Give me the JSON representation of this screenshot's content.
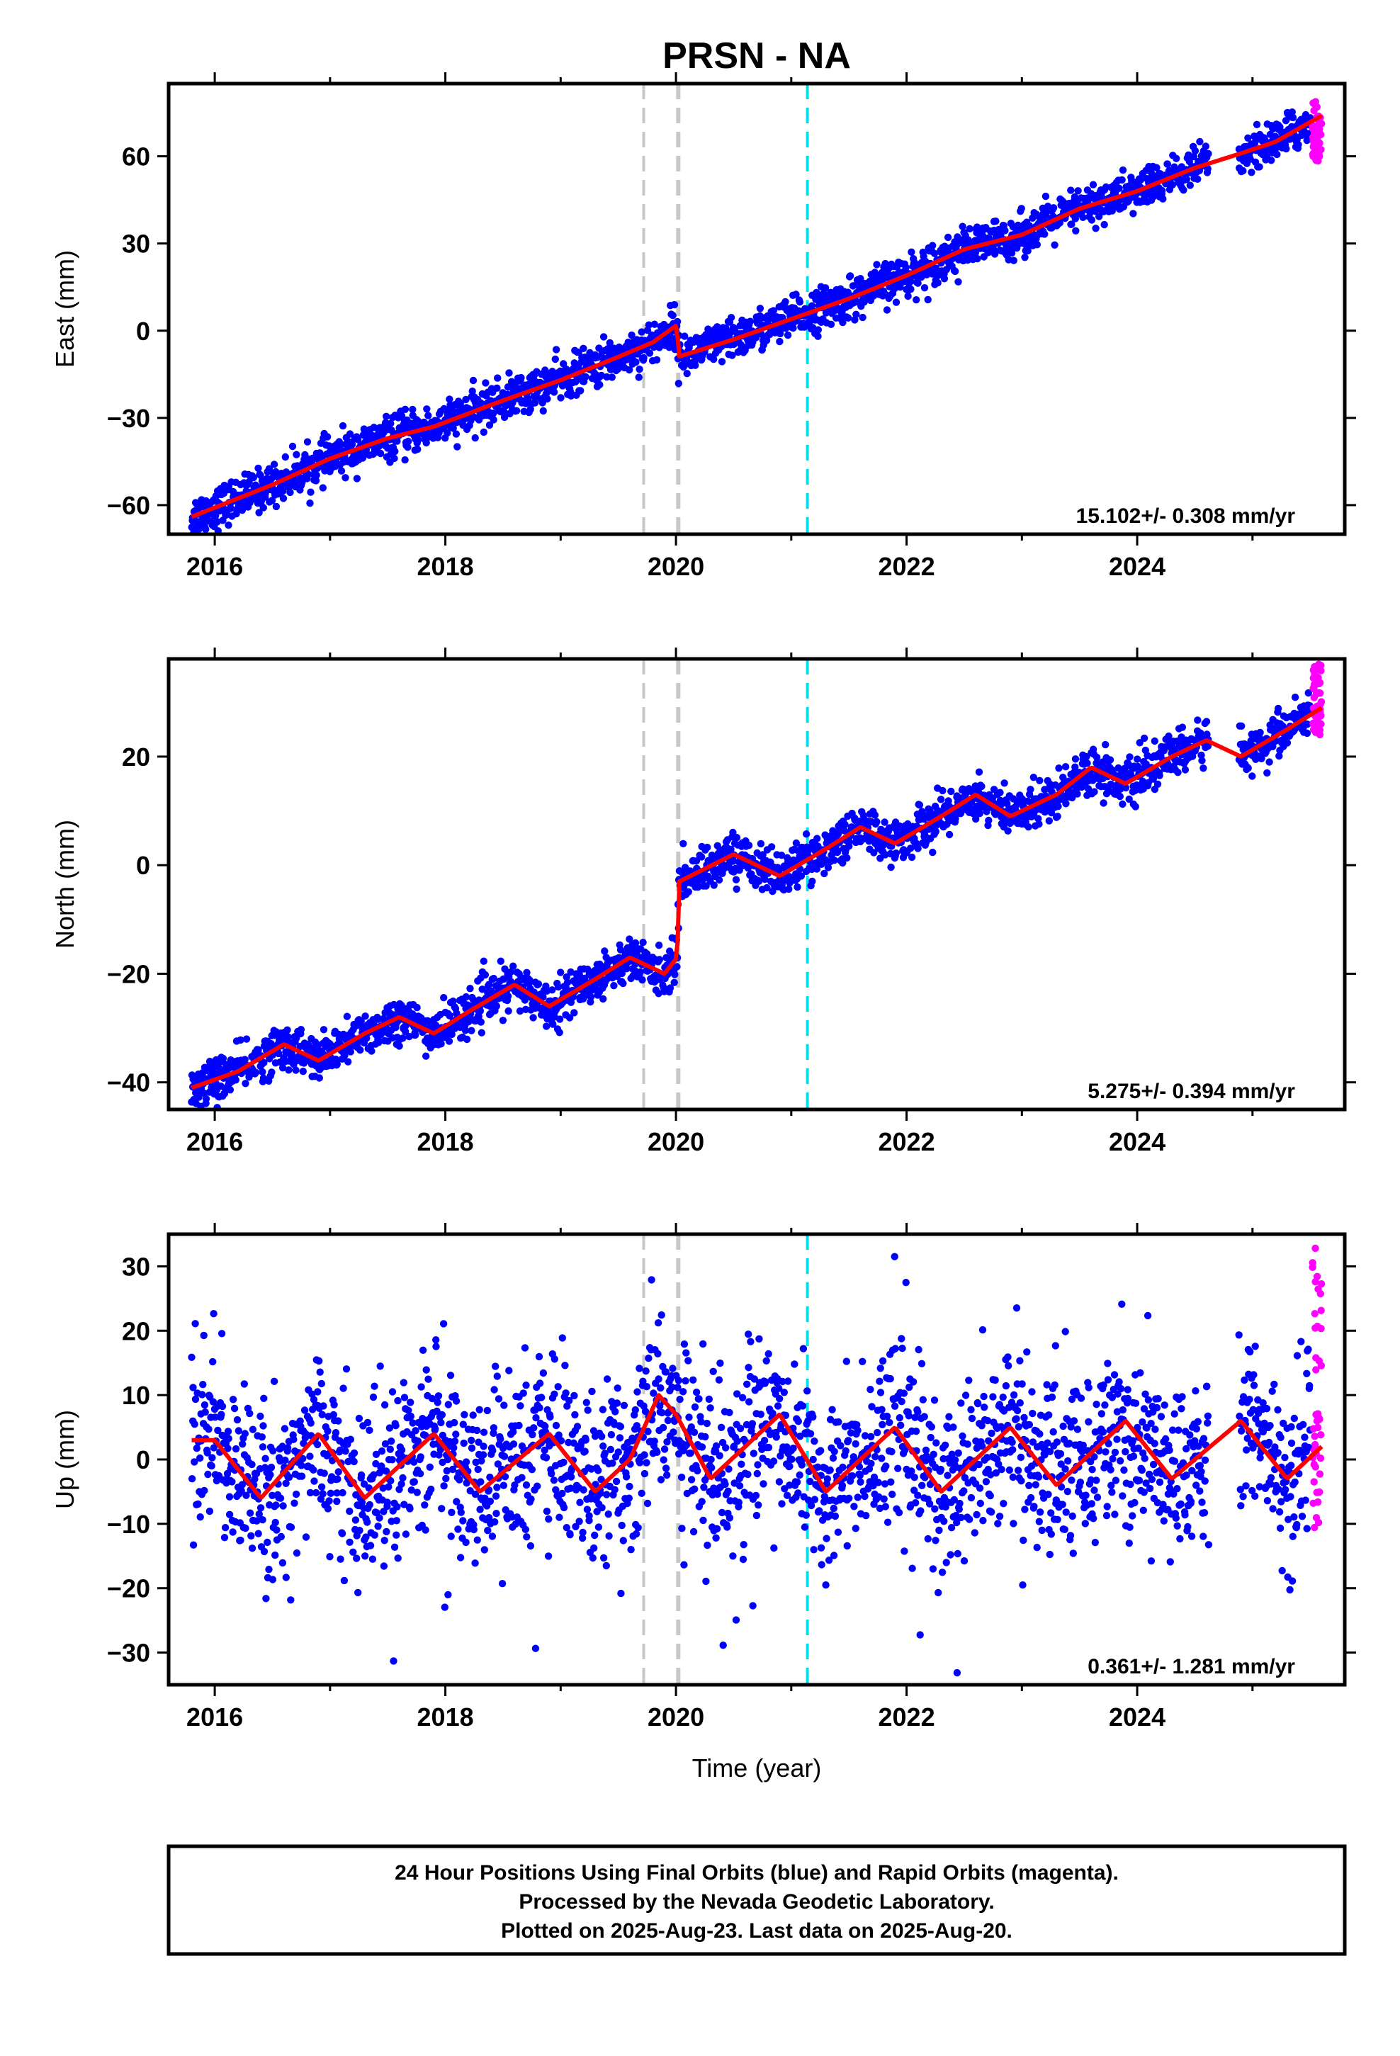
{
  "title": "PRSN - NA",
  "xlabel": "Time (year)",
  "x_ticks": [
    2016,
    2018,
    2020,
    2022,
    2024
  ],
  "xlim": [
    2015.6,
    2025.8
  ],
  "colors": {
    "final_orbits": "#0000ff",
    "rapid_orbits": "#ff00ff",
    "model": "#ff0000",
    "event_gray": "#c8c8c8",
    "event_cyan": "#00e0e8"
  },
  "chart_data": [
    {
      "type": "scatter",
      "ylabel": "East (mm)",
      "ylim": [
        -70,
        85
      ],
      "y_ticks": [
        -60,
        -30,
        0,
        30,
        60
      ],
      "rate_label": "15.102+/- 0.308 mm/yr",
      "events_gray": [
        2019.72,
        2020.02
      ],
      "events_cyan": [
        2021.14
      ],
      "model": {
        "x": [
          2015.8,
          2016.5,
          2017.0,
          2017.5,
          2017.9,
          2018.5,
          2019.0,
          2019.5,
          2019.8,
          2020.01,
          2020.02,
          2020.5,
          2021.0,
          2021.5,
          2022.0,
          2022.5,
          2023.0,
          2023.5,
          2024.0,
          2024.5,
          2024.9,
          2025.2,
          2025.6
        ],
        "y": [
          -64,
          -53,
          -44,
          -37,
          -33,
          -24,
          -17,
          -9,
          -4,
          2,
          -9,
          -3,
          4,
          11,
          19,
          28,
          33,
          42,
          48,
          56,
          61,
          65,
          74
        ]
      },
      "final_series": {
        "t_start": 2015.8,
        "t_end": 2025.5,
        "trend": "east",
        "spread": 3.5
      },
      "rapid_series": {
        "t_start": 2025.52,
        "t_end": 2025.6,
        "y_min": 58,
        "y_max": 79
      }
    },
    {
      "type": "scatter",
      "ylabel": "North (mm)",
      "ylim": [
        -45,
        38
      ],
      "y_ticks": [
        -40,
        -20,
        0,
        20
      ],
      "rate_label": "5.275+/- 0.394 mm/yr",
      "events_gray": [
        2019.72,
        2020.02
      ],
      "events_cyan": [
        2021.14
      ],
      "model": {
        "x": [
          2015.8,
          2016.2,
          2016.6,
          2016.9,
          2017.3,
          2017.6,
          2017.9,
          2018.2,
          2018.6,
          2018.9,
          2019.3,
          2019.6,
          2019.9,
          2020.01,
          2020.03,
          2020.5,
          2020.9,
          2021.3,
          2021.6,
          2021.9,
          2022.3,
          2022.6,
          2022.9,
          2023.3,
          2023.6,
          2023.9,
          2024.3,
          2024.6,
          2024.9,
          2025.3,
          2025.6
        ],
        "y": [
          -41,
          -38,
          -33,
          -36,
          -31,
          -28,
          -31,
          -27,
          -22,
          -26,
          -21,
          -17,
          -20,
          -17,
          -3,
          2,
          -2,
          3,
          7,
          4,
          9,
          13,
          9,
          13,
          18,
          15,
          20,
          23,
          20,
          25,
          29
        ]
      },
      "final_series": {
        "t_start": 2015.8,
        "t_end": 2025.5,
        "trend": "north",
        "spread": 2.0
      },
      "rapid_series": {
        "t_start": 2025.52,
        "t_end": 2025.6,
        "y_min": 24,
        "y_max": 37
      }
    },
    {
      "type": "scatter",
      "ylabel": "Up (mm)",
      "ylim": [
        -35,
        35
      ],
      "y_ticks": [
        -30,
        -20,
        -10,
        0,
        10,
        20,
        30
      ],
      "rate_label": "0.361+/- 1.281 mm/yr",
      "events_gray": [
        2019.72,
        2020.02
      ],
      "events_cyan": [
        2021.14
      ],
      "model": {
        "x": [
          2015.8,
          2016.0,
          2016.4,
          2016.9,
          2017.3,
          2017.9,
          2018.3,
          2018.9,
          2019.3,
          2019.6,
          2019.85,
          2020.0,
          2020.3,
          2020.9,
          2021.3,
          2021.9,
          2022.3,
          2022.9,
          2023.3,
          2023.9,
          2024.3,
          2024.9,
          2025.3,
          2025.6
        ],
        "y": [
          3,
          3,
          -6,
          4,
          -6,
          4,
          -5,
          4,
          -5,
          0,
          10,
          7,
          -3,
          7,
          -5,
          5,
          -5,
          5,
          -4,
          6,
          -3,
          6,
          -3,
          2
        ]
      },
      "final_series": {
        "t_start": 2015.8,
        "t_end": 2025.5,
        "trend": "up",
        "spread": 6.5
      },
      "rapid_series": {
        "t_start": 2025.52,
        "t_end": 2025.6,
        "y_min": -11,
        "y_max": 33
      }
    }
  ],
  "footer": {
    "line1": "24 Hour Positions Using Final Orbits (blue) and Rapid Orbits (magenta).",
    "line2": "Processed by the Nevada Geodetic Laboratory.",
    "line3": "Plotted on 2025-Aug-23. Last data on 2025-Aug-20."
  }
}
